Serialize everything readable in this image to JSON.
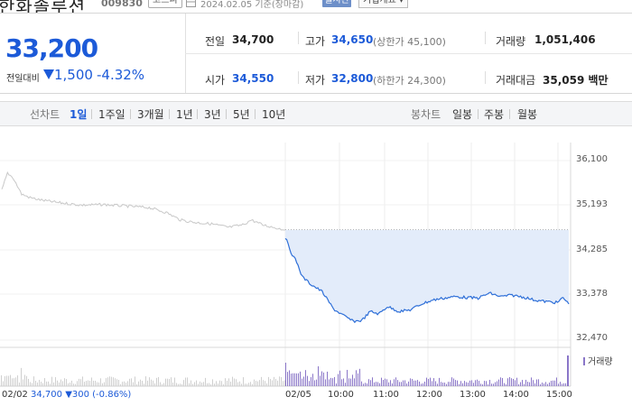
{
  "header": {
    "stock_name": "한화솔루션",
    "stock_code": "009830",
    "market": "코스피",
    "base_date": "2024.02.05 기준(장마감)",
    "realtime_label": "실시간",
    "overview_label": "기업개요 ▾"
  },
  "summary": {
    "current_price": "33,200",
    "change_label": "전일대비",
    "change_amount": "1,500",
    "change_percent": "-4.32%",
    "prev_close_label": "전일",
    "prev_close": "34,700",
    "high_label": "고가",
    "high": "34,650",
    "upper_limit": "(상한가 45,100)",
    "volume_label": "거래량",
    "volume": "1,051,406",
    "open_label": "시가",
    "open": "34,550",
    "low_label": "저가",
    "low": "32,800",
    "lower_limit": "(하한가 24,300)",
    "trade_value_label": "거래대금",
    "trade_value": "35,059 백만"
  },
  "tabs": {
    "line_label": "선차트",
    "periods": [
      "1일",
      "1주일",
      "3개월",
      "1년",
      "3년",
      "5년",
      "10년"
    ],
    "selected": "1일",
    "candle_label": "봉차트",
    "candles": [
      "일봉",
      "주봉",
      "월봉"
    ]
  },
  "colors": {
    "accent": "#1c5ad8",
    "line": "#2e6fd8",
    "fill": "#e3ecfa",
    "prev_line": "#c8c8c8",
    "volume": "#8a76c8"
  },
  "chart_data": {
    "type": "line",
    "title": "",
    "y_ticks": [
      "36,100",
      "35,193",
      "34,285",
      "33,378",
      "32,470"
    ],
    "ylim": [
      32470,
      36100
    ],
    "x_ticks": [
      "02/02",
      "02/05",
      "10:00",
      "11:00",
      "12:00",
      "13:00",
      "14:00",
      "15:00"
    ],
    "reference_price": 34700,
    "prev_day_series": {
      "name": "02/02",
      "points": [
        [
          0,
          35500
        ],
        [
          0.02,
          35850
        ],
        [
          0.04,
          35750
        ],
        [
          0.07,
          35420
        ],
        [
          0.1,
          35350
        ],
        [
          0.14,
          35300
        ],
        [
          0.2,
          35250
        ],
        [
          0.28,
          35200
        ],
        [
          0.36,
          35210
        ],
        [
          0.44,
          35180
        ],
        [
          0.52,
          35150
        ],
        [
          0.58,
          35050
        ],
        [
          0.63,
          34900
        ],
        [
          0.68,
          34850
        ],
        [
          0.74,
          34820
        ],
        [
          0.8,
          34750
        ],
        [
          0.85,
          34800
        ],
        [
          0.88,
          34900
        ],
        [
          0.92,
          34800
        ],
        [
          0.96,
          34750
        ],
        [
          1.0,
          34700
        ]
      ]
    },
    "today_series": {
      "name": "02/05",
      "points": [
        [
          0,
          34550
        ],
        [
          0.02,
          34250
        ],
        [
          0.04,
          34050
        ],
        [
          0.06,
          33750
        ],
        [
          0.09,
          33600
        ],
        [
          0.13,
          33450
        ],
        [
          0.17,
          33100
        ],
        [
          0.21,
          32950
        ],
        [
          0.24,
          32850
        ],
        [
          0.27,
          32870
        ],
        [
          0.3,
          33050
        ],
        [
          0.33,
          33000
        ],
        [
          0.36,
          33150
        ],
        [
          0.4,
          33050
        ],
        [
          0.44,
          33080
        ],
        [
          0.48,
          33200
        ],
        [
          0.52,
          33280
        ],
        [
          0.56,
          33320
        ],
        [
          0.6,
          33350
        ],
        [
          0.64,
          33330
        ],
        [
          0.68,
          33320
        ],
        [
          0.72,
          33420
        ],
        [
          0.76,
          33350
        ],
        [
          0.8,
          33380
        ],
        [
          0.84,
          33340
        ],
        [
          0.88,
          33280
        ],
        [
          0.92,
          33250
        ],
        [
          0.96,
          33230
        ],
        [
          0.98,
          33330
        ],
        [
          1.0,
          33200
        ]
      ]
    },
    "prev_info": {
      "date": "02/02",
      "price": "34,700",
      "change": "▼300 (-0.86%)"
    },
    "volume_label": "거래량"
  }
}
